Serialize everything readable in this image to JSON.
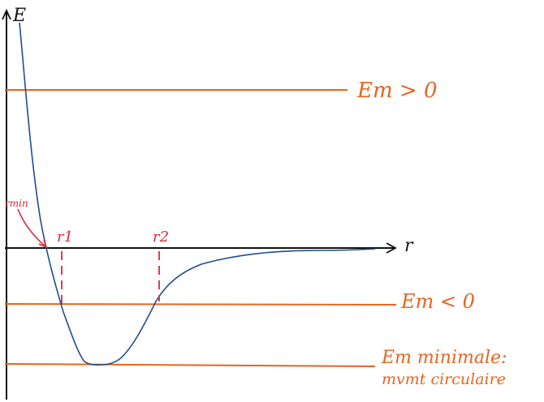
{
  "axes": {
    "y_label": "E",
    "x_label": "r"
  },
  "levels": {
    "positive": {
      "label": "Em > 0"
    },
    "negative": {
      "label": "Em < 0"
    },
    "minimal": {
      "label_line1": "Em minimale:",
      "label_line2": "mvmt circulaire"
    }
  },
  "markers": {
    "r1": "r1",
    "r2": "r2",
    "rmin": "rmin"
  },
  "colors": {
    "axis": "#111111",
    "curve": "#1f4e8c",
    "level_lines": "#e8641f",
    "markers": "#d8283c"
  }
}
